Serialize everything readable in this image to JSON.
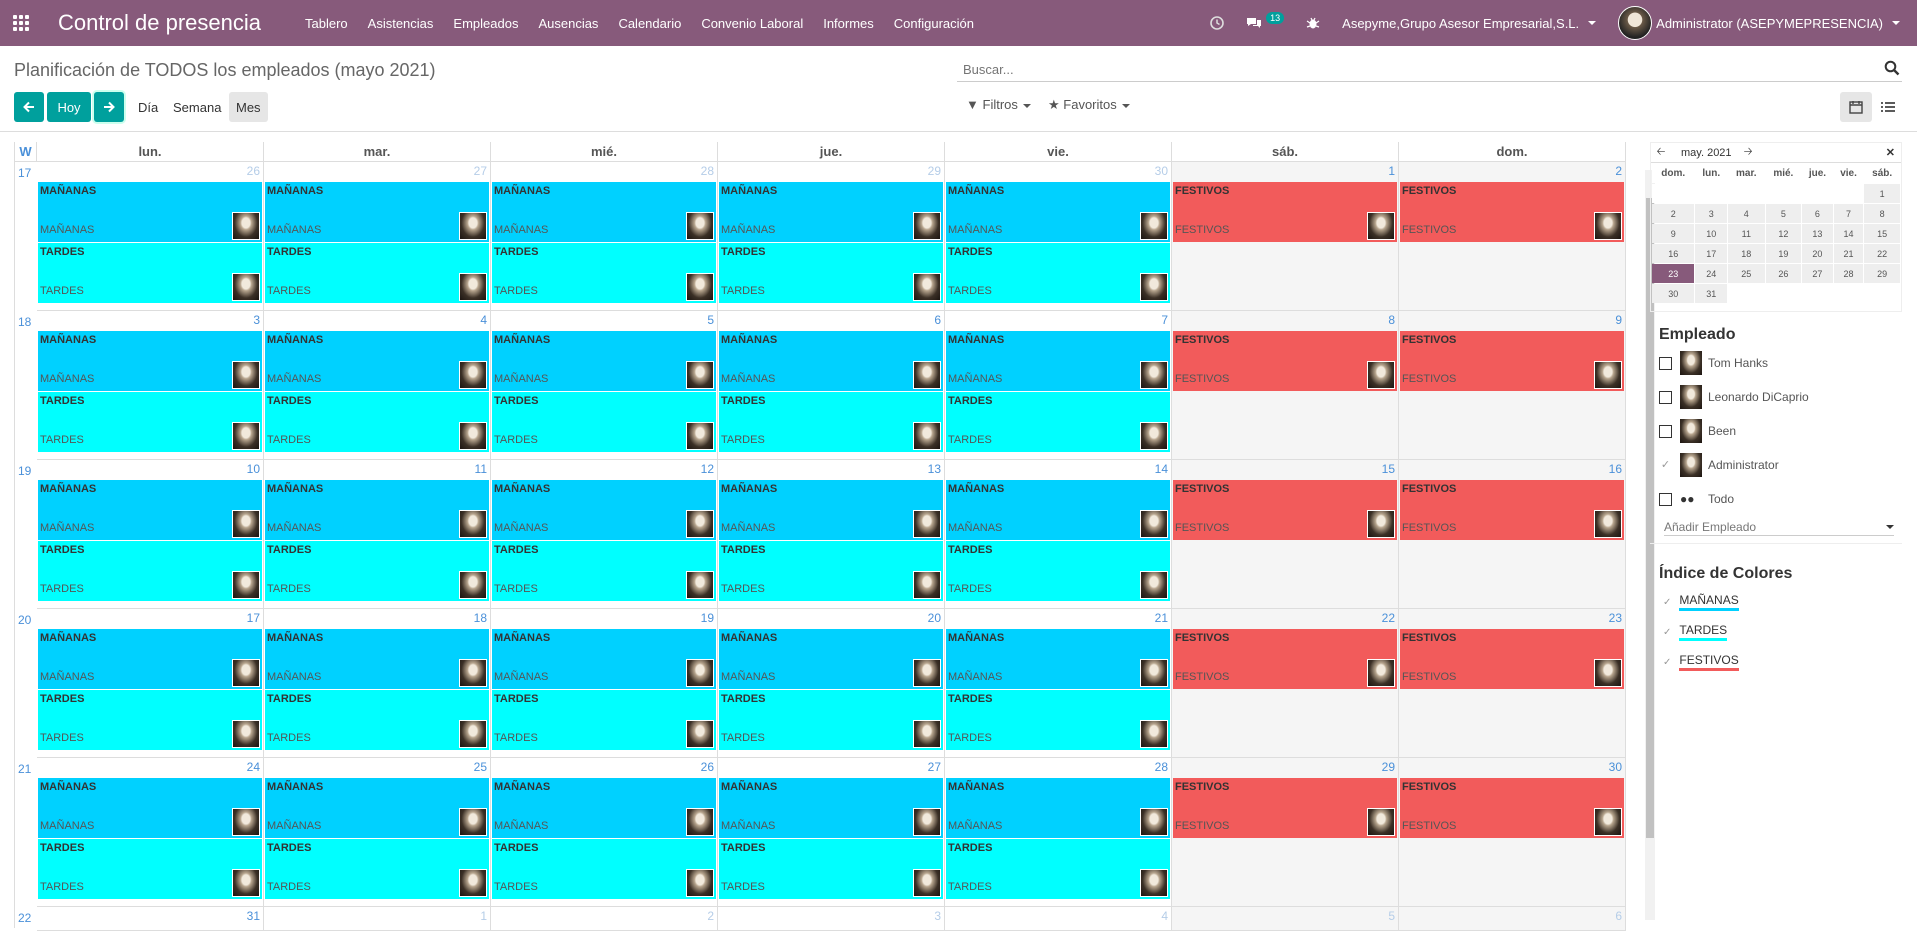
{
  "navbar": {
    "app_title": "Control de presencia",
    "menu": [
      "Tablero",
      "Asistencias",
      "Empleados",
      "Ausencias",
      "Calendario",
      "Convenio Laboral",
      "Informes",
      "Configuración"
    ],
    "messages_count": "13",
    "company": "Asepyme,Grupo Asesor Empresarial,S.L.",
    "user": "Administrator (ASEPYMEPRESENCIA)"
  },
  "control": {
    "title": "Planificación de TODOS los empleados (mayo 2021)",
    "today_label": "Hoy",
    "scales": [
      "Día",
      "Semana",
      "Mes"
    ],
    "search_placeholder": "Buscar...",
    "filters_label": "Filtros",
    "favorites_label": "Favoritos"
  },
  "calendar": {
    "week_header": "W",
    "days": [
      "lun.",
      "mar.",
      "mié.",
      "jue.",
      "vie.",
      "sáb.",
      "dom."
    ],
    "weeks": [
      {
        "num": "17",
        "dates": [
          "26",
          "27",
          "28",
          "29",
          "30",
          "1",
          "2"
        ],
        "other": [
          true,
          true,
          true,
          true,
          true,
          false,
          false
        ]
      },
      {
        "num": "18",
        "dates": [
          "3",
          "4",
          "5",
          "6",
          "7",
          "8",
          "9"
        ],
        "other": [
          false,
          false,
          false,
          false,
          false,
          false,
          false
        ]
      },
      {
        "num": "19",
        "dates": [
          "10",
          "11",
          "12",
          "13",
          "14",
          "15",
          "16"
        ],
        "other": [
          false,
          false,
          false,
          false,
          false,
          false,
          false
        ]
      },
      {
        "num": "20",
        "dates": [
          "17",
          "18",
          "19",
          "20",
          "21",
          "22",
          "23"
        ],
        "other": [
          false,
          false,
          false,
          false,
          false,
          false,
          false
        ]
      },
      {
        "num": "21",
        "dates": [
          "24",
          "25",
          "26",
          "27",
          "28",
          "29",
          "30"
        ],
        "other": [
          false,
          false,
          false,
          false,
          false,
          false,
          false
        ]
      },
      {
        "num": "22",
        "dates": [
          "31",
          "1",
          "2",
          "3",
          "4",
          "5",
          "6"
        ],
        "other": [
          false,
          true,
          true,
          true,
          true,
          true,
          true
        ]
      }
    ],
    "event_labels": {
      "m": "MAÑANAS",
      "t": "TARDES",
      "f": "FESTIVOS"
    }
  },
  "mini_cal": {
    "month": "may. 2021",
    "days": [
      "dom.",
      "lun.",
      "mar.",
      "mié.",
      "jue.",
      "vie.",
      "sáb."
    ],
    "rows": [
      [
        "",
        "",
        "",
        "",
        "",
        "",
        "1"
      ],
      [
        "2",
        "3",
        "4",
        "5",
        "6",
        "7",
        "8"
      ],
      [
        "9",
        "10",
        "11",
        "12",
        "13",
        "14",
        "15"
      ],
      [
        "16",
        "17",
        "18",
        "19",
        "20",
        "21",
        "22"
      ],
      [
        "23",
        "24",
        "25",
        "26",
        "27",
        "28",
        "29"
      ],
      [
        "30",
        "31",
        "",
        "",
        "",
        "",
        ""
      ]
    ],
    "selected": "23"
  },
  "employees": {
    "title": "Empleado",
    "items": [
      {
        "name": "Tom Hanks",
        "checked": false
      },
      {
        "name": "Leonardo DiCaprio",
        "checked": false
      },
      {
        "name": "Been",
        "checked": false
      },
      {
        "name": "Administrator",
        "checked": true
      },
      {
        "name": "Todo",
        "checked": false
      }
    ],
    "add_placeholder": "Añadir Empleado"
  },
  "color_index": {
    "title": "Índice de Colores",
    "items": [
      {
        "name": "MAÑANAS",
        "color": "#00d1ff"
      },
      {
        "name": "TARDES",
        "color": "#00ffff"
      },
      {
        "name": "FESTIVOS",
        "color": "#f25b5b"
      }
    ]
  }
}
